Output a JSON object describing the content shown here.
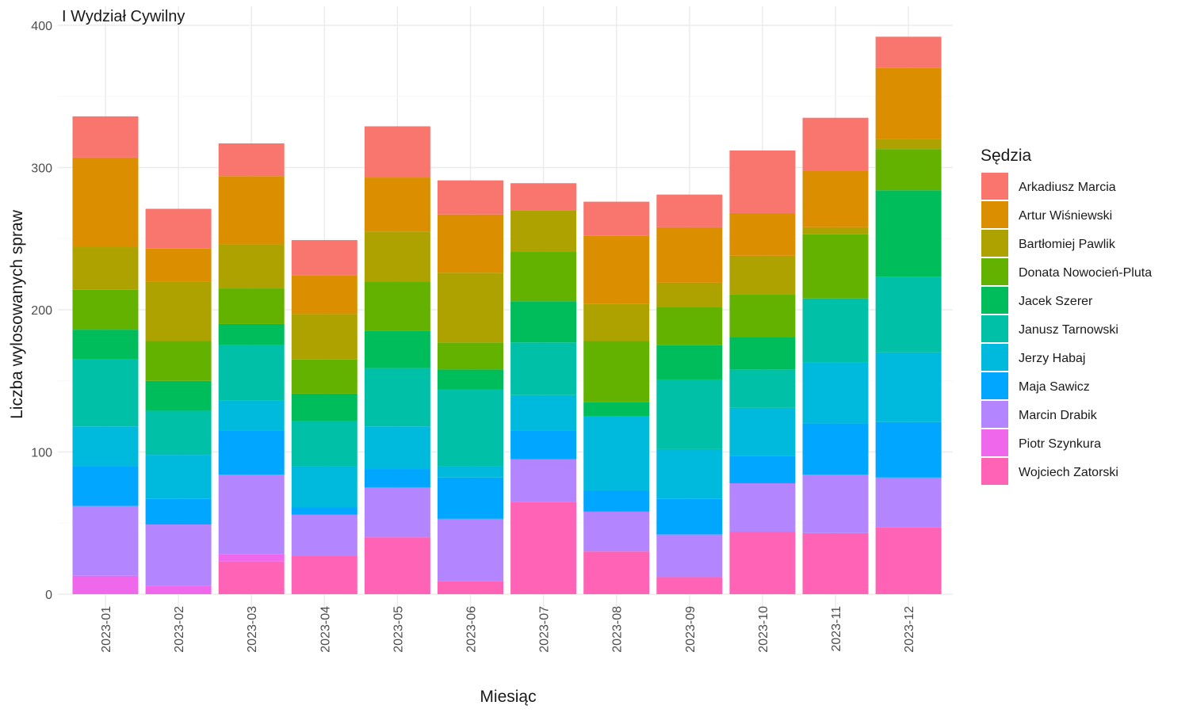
{
  "chart_data": {
    "type": "bar",
    "stacked": true,
    "title": "I Wydział Cywilny",
    "xlabel": "Miesiąc",
    "ylabel": "Liczba wylosowanych spraw",
    "ylim": [
      0,
      410
    ],
    "y_ticks": [
      0,
      100,
      200,
      300,
      400
    ],
    "grid": true,
    "legend": {
      "title": "Sędzia",
      "placement": "right"
    },
    "categories": [
      "2023-01",
      "2023-02",
      "2023-03",
      "2023-04",
      "2023-05",
      "2023-06",
      "2023-07",
      "2023-08",
      "2023-09",
      "2023-10",
      "2023-11",
      "2023-12"
    ],
    "series": [
      {
        "name": "Arkadiusz Marcia",
        "color": "#F8766D",
        "values": [
          29,
          28,
          23,
          25,
          36,
          24,
          19,
          24,
          23,
          44,
          37,
          22
        ]
      },
      {
        "name": "Artur Wiśniewski",
        "color": "#DB8E00",
        "values": [
          63,
          23,
          48,
          27,
          38,
          41,
          0,
          48,
          39,
          30,
          40,
          50
        ]
      },
      {
        "name": "Bartłomiej Pawlik",
        "color": "#AEA200",
        "values": [
          30,
          42,
          31,
          32,
          35,
          49,
          29,
          26,
          17,
          27,
          5,
          7
        ]
      },
      {
        "name": "Donata Nowocień-Pluta",
        "color": "#64B200",
        "values": [
          28,
          28,
          25,
          24,
          35,
          19,
          35,
          43,
          27,
          30,
          45,
          29
        ]
      },
      {
        "name": "Jacek Szerer",
        "color": "#00BD5C",
        "values": [
          21,
          21,
          15,
          19,
          26,
          14,
          29,
          10,
          24,
          23,
          0,
          61
        ]
      },
      {
        "name": "Janusz Tarnowski",
        "color": "#00C1A7",
        "values": [
          47,
          31,
          39,
          32,
          41,
          54,
          37,
          0,
          49,
          27,
          45,
          53
        ]
      },
      {
        "name": "Jerzy Habaj",
        "color": "#00BADE",
        "values": [
          28,
          31,
          21,
          29,
          30,
          8,
          25,
          52,
          35,
          34,
          43,
          49
        ]
      },
      {
        "name": "Maja Sawicz",
        "color": "#00A6FF",
        "values": [
          28,
          18,
          31,
          5,
          13,
          29,
          20,
          15,
          25,
          19,
          36,
          39
        ]
      },
      {
        "name": "Marcin Drabik",
        "color": "#B385FF",
        "values": [
          49,
          43,
          56,
          29,
          35,
          44,
          30,
          28,
          30,
          34,
          41,
          35
        ]
      },
      {
        "name": "Piotr Szynkura",
        "color": "#EF67EB",
        "values": [
          13,
          6,
          5,
          0,
          0,
          0,
          0,
          0,
          0,
          0,
          0,
          0
        ]
      },
      {
        "name": "Wojciech Zatorski",
        "color": "#FF63B6",
        "values": [
          0,
          0,
          23,
          27,
          40,
          9,
          65,
          30,
          12,
          44,
          43,
          47
        ]
      }
    ]
  }
}
